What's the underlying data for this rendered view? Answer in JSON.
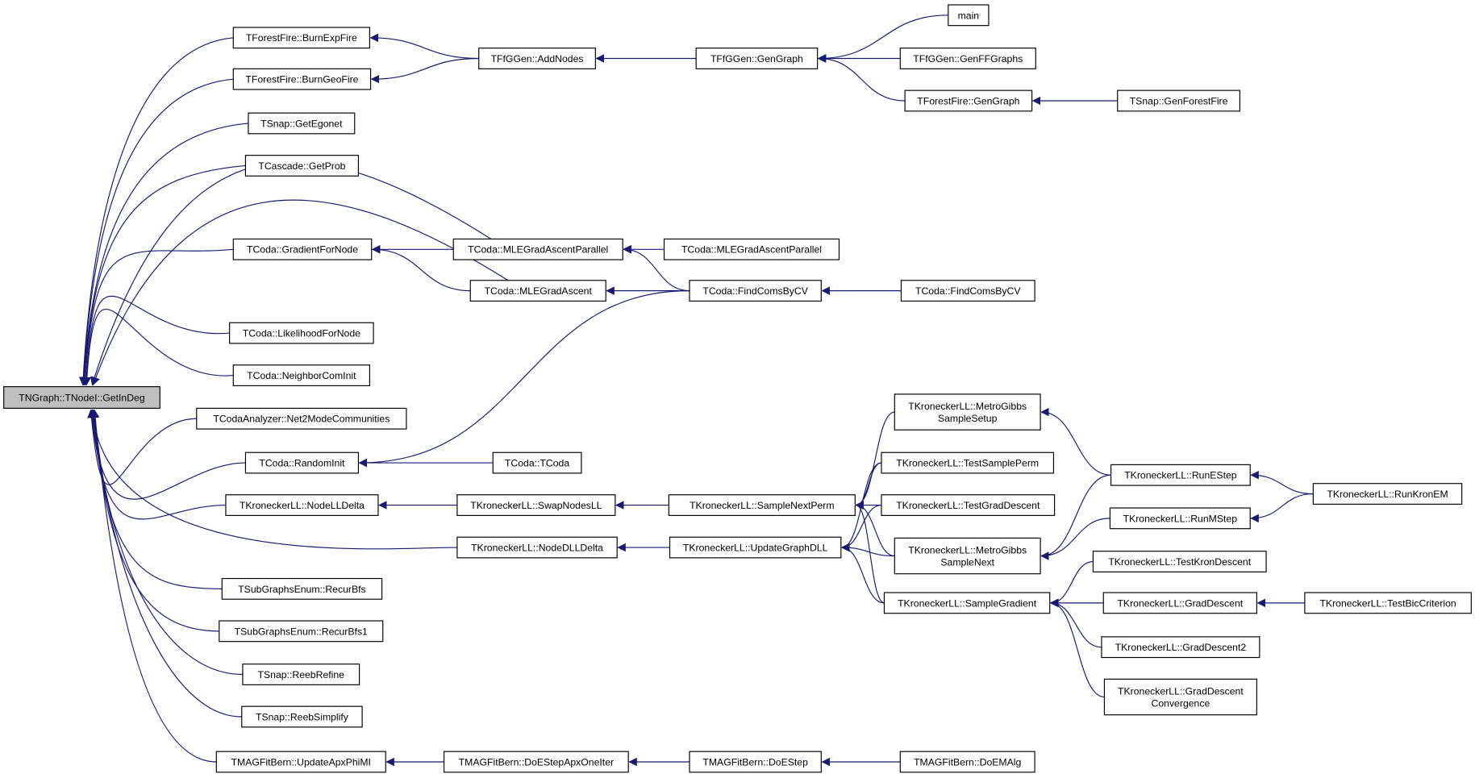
{
  "graph": {
    "type": "caller-graph",
    "colors": {
      "edge": "#191970",
      "root_fill": "#bfbfbf",
      "node_fill": "#ffffff",
      "node_border": "#000000"
    },
    "root": "GetInDeg",
    "nodes": [
      {
        "id": "GetInDeg",
        "label": [
          "TNGraph::TNodeI::GetInDeg"
        ]
      },
      {
        "id": "BurnExpFire",
        "label": [
          "TForestFire::BurnExpFire"
        ]
      },
      {
        "id": "BurnGeoFire",
        "label": [
          "TForestFire::BurnGeoFire"
        ]
      },
      {
        "id": "GetEgonet",
        "label": [
          "TSnap::GetEgonet"
        ]
      },
      {
        "id": "GetProb",
        "label": [
          "TCascade::GetProb"
        ]
      },
      {
        "id": "GradientForNode",
        "label": [
          "TCoda::GradientForNode"
        ]
      },
      {
        "id": "LikelihoodForNode",
        "label": [
          "TCoda::LikelihoodForNode"
        ]
      },
      {
        "id": "NeighborComInit",
        "label": [
          "TCoda::NeighborComInit"
        ]
      },
      {
        "id": "Net2Mode",
        "label": [
          "TCodaAnalyzer::Net2ModeCommunities"
        ]
      },
      {
        "id": "RandomInit",
        "label": [
          "TCoda::RandomInit"
        ]
      },
      {
        "id": "NodeLLDelta",
        "label": [
          "TKroneckerLL::NodeLLDelta"
        ]
      },
      {
        "id": "RecurBfs",
        "label": [
          "TSubGraphsEnum::RecurBfs"
        ]
      },
      {
        "id": "RecurBfs1",
        "label": [
          "TSubGraphsEnum::RecurBfs1"
        ]
      },
      {
        "id": "ReebRefine",
        "label": [
          "TSnap::ReebRefine"
        ]
      },
      {
        "id": "ReebSimplify",
        "label": [
          "TSnap::ReebSimplify"
        ]
      },
      {
        "id": "UpdateApxPhiMI",
        "label": [
          "TMAGFitBern::UpdateApxPhiMI"
        ]
      },
      {
        "id": "AddNodes",
        "label": [
          "TFfGGen::AddNodes"
        ]
      },
      {
        "id": "MLEGAP",
        "label": [
          "TCoda::MLEGradAscentParallel"
        ]
      },
      {
        "id": "MLEGA",
        "label": [
          "TCoda::MLEGradAscent"
        ]
      },
      {
        "id": "TCoda",
        "label": [
          "TCoda::TCoda"
        ]
      },
      {
        "id": "SwapNodesLL",
        "label": [
          "TKroneckerLL::SwapNodesLL"
        ]
      },
      {
        "id": "NodeDLLDelta",
        "label": [
          "TKroneckerLL::NodeDLLDelta"
        ]
      },
      {
        "id": "DoEStepApx",
        "label": [
          "TMAGFitBern::DoEStepApxOneIter"
        ]
      },
      {
        "id": "FfGenGraph",
        "label": [
          "TFfGGen::GenGraph"
        ]
      },
      {
        "id": "MLEGAP2",
        "label": [
          "TCoda::MLEGradAscentParallel"
        ]
      },
      {
        "id": "FindComs",
        "label": [
          "TCoda::FindComsByCV"
        ]
      },
      {
        "id": "SampleNextPerm",
        "label": [
          "TKroneckerLL::SampleNextPerm"
        ]
      },
      {
        "id": "UpdateGraphDLL",
        "label": [
          "TKroneckerLL::UpdateGraphDLL"
        ]
      },
      {
        "id": "DoEStep",
        "label": [
          "TMAGFitBern::DoEStep"
        ]
      },
      {
        "id": "main",
        "label": [
          "main"
        ]
      },
      {
        "id": "GenFFGraphs",
        "label": [
          "TFfGGen::GenFFGraphs"
        ]
      },
      {
        "id": "FFGenGraph",
        "label": [
          "TForestFire::GenGraph"
        ]
      },
      {
        "id": "FindComs2",
        "label": [
          "TCoda::FindComsByCV"
        ]
      },
      {
        "id": "MGSetup",
        "label": [
          "TKroneckerLL::MetroGibbs",
          "SampleSetup"
        ]
      },
      {
        "id": "TestSamplePerm",
        "label": [
          "TKroneckerLL::TestSamplePerm"
        ]
      },
      {
        "id": "TestGradDescent",
        "label": [
          "TKroneckerLL::TestGradDescent"
        ]
      },
      {
        "id": "MGNext",
        "label": [
          "TKroneckerLL::MetroGibbs",
          "SampleNext"
        ]
      },
      {
        "id": "SampleGradient",
        "label": [
          "TKroneckerLL::SampleGradient"
        ]
      },
      {
        "id": "DoEMAlg",
        "label": [
          "TMAGFitBern::DoEMAlg"
        ]
      },
      {
        "id": "GenForestFire",
        "label": [
          "TSnap::GenForestFire"
        ]
      },
      {
        "id": "RunEStep",
        "label": [
          "TKroneckerLL::RunEStep"
        ]
      },
      {
        "id": "RunMStep",
        "label": [
          "TKroneckerLL::RunMStep"
        ]
      },
      {
        "id": "TestKronDescent",
        "label": [
          "TKroneckerLL::TestKronDescent"
        ]
      },
      {
        "id": "GradDescent",
        "label": [
          "TKroneckerLL::GradDescent"
        ]
      },
      {
        "id": "GradDescent2",
        "label": [
          "TKroneckerLL::GradDescent2"
        ]
      },
      {
        "id": "GradDescentConv",
        "label": [
          "TKroneckerLL::GradDescent",
          "Convergence"
        ]
      },
      {
        "id": "RunKronEM",
        "label": [
          "TKroneckerLL::RunKronEM"
        ]
      },
      {
        "id": "TestBic",
        "label": [
          "TKroneckerLL::TestBicCriterion"
        ]
      }
    ],
    "edges": [
      [
        "BurnExpFire",
        "GetInDeg"
      ],
      [
        "BurnGeoFire",
        "GetInDeg"
      ],
      [
        "GetEgonet",
        "GetInDeg"
      ],
      [
        "GetProb",
        "GetInDeg"
      ],
      [
        "MLEGAP",
        "GetInDeg"
      ],
      [
        "GradientForNode",
        "GetInDeg"
      ],
      [
        "MLEGA",
        "GetInDeg"
      ],
      [
        "LikelihoodForNode",
        "GetInDeg"
      ],
      [
        "NeighborComInit",
        "GetInDeg"
      ],
      [
        "Net2Mode",
        "GetInDeg"
      ],
      [
        "RandomInit",
        "GetInDeg"
      ],
      [
        "NodeLLDelta",
        "GetInDeg"
      ],
      [
        "NodeDLLDelta",
        "GetInDeg"
      ],
      [
        "RecurBfs",
        "GetInDeg"
      ],
      [
        "RecurBfs1",
        "GetInDeg"
      ],
      [
        "ReebRefine",
        "GetInDeg"
      ],
      [
        "ReebSimplify",
        "GetInDeg"
      ],
      [
        "UpdateApxPhiMI",
        "GetInDeg"
      ],
      [
        "AddNodes",
        "BurnExpFire"
      ],
      [
        "AddNodes",
        "BurnGeoFire"
      ],
      [
        "FfGenGraph",
        "AddNodes"
      ],
      [
        "main",
        "FfGenGraph"
      ],
      [
        "GenFFGraphs",
        "FfGenGraph"
      ],
      [
        "FFGenGraph",
        "FfGenGraph"
      ],
      [
        "GenForestFire",
        "FFGenGraph"
      ],
      [
        "MLEGAP",
        "GradientForNode"
      ],
      [
        "MLEGA",
        "GradientForNode"
      ],
      [
        "MLEGAP2",
        "MLEGAP"
      ],
      [
        "FindComs",
        "MLEGAP"
      ],
      [
        "FindComs",
        "MLEGA"
      ],
      [
        "FindComs",
        "RandomInit"
      ],
      [
        "FindComs2",
        "FindComs"
      ],
      [
        "TCoda",
        "RandomInit"
      ],
      [
        "SwapNodesLL",
        "NodeLLDelta"
      ],
      [
        "SampleNextPerm",
        "SwapNodesLL"
      ],
      [
        "UpdateGraphDLL",
        "NodeDLLDelta"
      ],
      [
        "DoEStepApx",
        "UpdateApxPhiMI"
      ],
      [
        "DoEStep",
        "DoEStepApx"
      ],
      [
        "DoEMAlg",
        "DoEStep"
      ],
      [
        "MGSetup",
        "SampleNextPerm"
      ],
      [
        "TestSamplePerm",
        "SampleNextPerm"
      ],
      [
        "TestGradDescent",
        "SampleNextPerm"
      ],
      [
        "MGNext",
        "SampleNextPerm"
      ],
      [
        "SampleGradient",
        "SampleNextPerm"
      ],
      [
        "TestSamplePerm",
        "UpdateGraphDLL"
      ],
      [
        "TestGradDescent",
        "UpdateGraphDLL"
      ],
      [
        "MGNext",
        "UpdateGraphDLL"
      ],
      [
        "SampleGradient",
        "UpdateGraphDLL"
      ],
      [
        "RunEStep",
        "MGSetup"
      ],
      [
        "RunEStep",
        "MGNext"
      ],
      [
        "RunMStep",
        "MGNext"
      ],
      [
        "RunKronEM",
        "RunEStep"
      ],
      [
        "RunKronEM",
        "RunMStep"
      ],
      [
        "TestKronDescent",
        "SampleGradient"
      ],
      [
        "GradDescent",
        "SampleGradient"
      ],
      [
        "GradDescent2",
        "SampleGradient"
      ],
      [
        "GradDescentConv",
        "SampleGradient"
      ],
      [
        "TestBic",
        "GradDescent"
      ]
    ]
  }
}
